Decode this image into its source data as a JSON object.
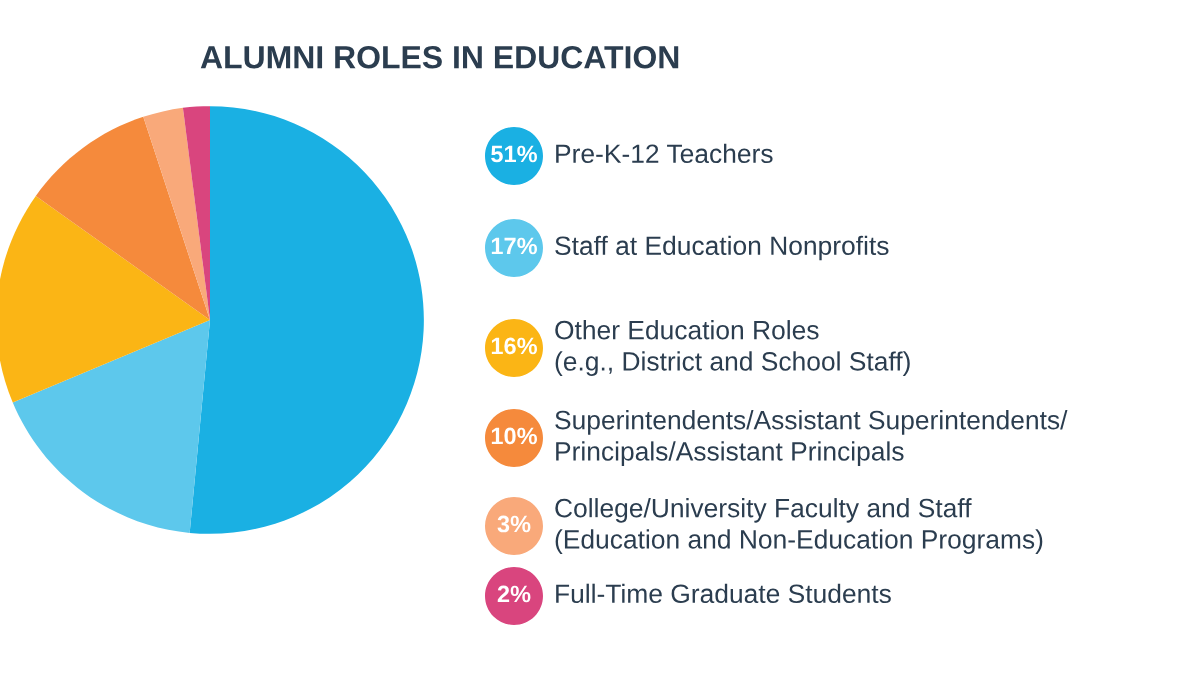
{
  "chart_data": {
    "type": "pie",
    "title": "ALUMNI ROLES IN EDUCATION",
    "categories": [
      "Pre-K-12 Teachers",
      "Staff at Education Nonprofits",
      "Other Education Roles\n(e.g., District and School Staff)",
      "Superintendents/Assistant Superintendents/\nPrincipals/Assistant Principals",
      "College/University Faculty and Staff\n(Education and Non-Education Programs)",
      "Full-Time Graduate Students"
    ],
    "values": [
      51,
      17,
      16,
      10,
      3,
      2
    ],
    "colors": [
      "#1ab0e3",
      "#5dc8ec",
      "#fbb515",
      "#f58a3c",
      "#f9a97a",
      "#d9457e"
    ],
    "value_labels": [
      "51%",
      "17%",
      "16%",
      "10%",
      "3%",
      "2%"
    ],
    "legend": "right"
  }
}
